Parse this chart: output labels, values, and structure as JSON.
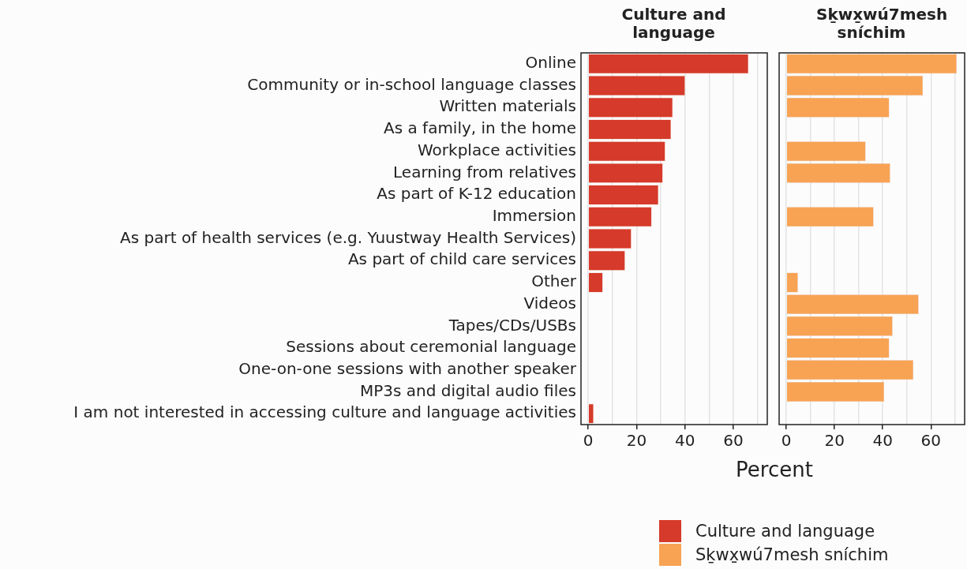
{
  "chart_data": [
    {
      "type": "bar",
      "orientation": "horizontal",
      "title": "Culture and language",
      "xlabel": "Percent",
      "categories": [
        "Online",
        "Community or in-school language classes",
        "Written materials",
        "As a family, in the home",
        "Workplace activities",
        "Learning from relatives",
        "As part of K-12 education",
        "Immersion",
        "As part of health services (e.g. Yuustway Health Services)",
        "As part of child care services",
        "Other",
        "Videos",
        "Tapes/CDs/USBs",
        "Sessions about ceremonial language",
        "One-on-one sessions with another speaker",
        "MP3s and digital audio files",
        "I am not interested in accessing culture and language activities"
      ],
      "series": [
        {
          "name": "Culture and language",
          "color": "#d63a2a",
          "values": [
            66.2,
            40.0,
            34.9,
            34.2,
            31.8,
            30.8,
            29.0,
            26.2,
            17.8,
            15.2,
            6.0,
            null,
            null,
            null,
            null,
            null,
            2.2
          ]
        }
      ],
      "xlim": [
        -3,
        74
      ],
      "xticks": [
        0,
        {
          "value": 10,
          "label": null
        },
        20,
        {
          "value": 30,
          "label": null
        },
        40,
        {
          "value": 50,
          "label": null
        },
        60,
        {
          "value": 70,
          "label": null
        }
      ],
      "grid": "x",
      "legend": "bottom"
    },
    {
      "type": "bar",
      "orientation": "horizontal",
      "title": "Sḵwx̱wú7mesh sníchim",
      "categories": [
        "Online",
        "Community or in-school language classes",
        "Written materials",
        "As a family, in the home",
        "Workplace activities",
        "Learning from relatives",
        "As part of K-12 education",
        "Immersion",
        "As part of health services (e.g. Yuustway Health Services)",
        "As part of child care services",
        "Other",
        "Videos",
        "Tapes/CDs/USBs",
        "Sessions about ceremonial language",
        "One-on-one sessions with another speaker",
        "MP3s and digital audio files",
        "I am not interested in accessing culture and language activities"
      ],
      "series": [
        {
          "name": "Sḵwx̱wú7mesh sníchim",
          "color": "#f7a353",
          "values": [
            70.7,
            56.7,
            42.7,
            null,
            32.9,
            43.1,
            null,
            36.2,
            null,
            null,
            4.8,
            54.9,
            44.1,
            42.7,
            52.7,
            40.6,
            null
          ]
        }
      ],
      "xlim": [
        -3,
        74
      ],
      "xticks": [
        0,
        {
          "value": 10,
          "label": null
        },
        20,
        {
          "value": 30,
          "label": null
        },
        40,
        {
          "value": 50,
          "label": null
        },
        60,
        {
          "value": 70,
          "label": null
        }
      ],
      "grid": "x",
      "legend": "bottom",
      "tick_labels": "x"
    }
  ]
}
